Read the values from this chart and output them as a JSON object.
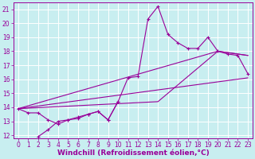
{
  "background_color": "#c8eef0",
  "grid_color": "#ffffff",
  "line_color": "#990099",
  "xlim": [
    -0.5,
    23.5
  ],
  "ylim": [
    11.8,
    21.5
  ],
  "xtick_vals": [
    0,
    1,
    2,
    3,
    4,
    5,
    6,
    7,
    8,
    9,
    10,
    11,
    12,
    13,
    14,
    15,
    16,
    17,
    18,
    19,
    20,
    21,
    22,
    23
  ],
  "ytick_vals": [
    12,
    13,
    14,
    15,
    16,
    17,
    18,
    19,
    20,
    21
  ],
  "xlabel": "Windchill (Refroidissement éolien,°C)",
  "xlabel_fontsize": 6.5,
  "tick_fontsize": 5.5,
  "curve1_x": [
    0,
    1,
    2,
    3,
    4,
    5,
    6,
    7,
    8,
    9,
    10
  ],
  "curve1_y": [
    13.9,
    13.6,
    13.6,
    13.1,
    12.8,
    13.1,
    13.3,
    13.5,
    13.7,
    13.1,
    14.4
  ],
  "curve2_x": [
    2,
    3,
    4,
    5,
    6,
    7,
    8,
    9,
    10,
    11,
    12,
    13,
    14,
    15,
    16,
    17,
    18,
    19,
    20,
    21,
    22,
    23
  ],
  "curve2_y": [
    11.9,
    12.4,
    13.0,
    13.1,
    13.2,
    13.5,
    13.7,
    13.1,
    14.4,
    16.1,
    16.2,
    20.3,
    21.2,
    19.2,
    18.6,
    18.2,
    18.2,
    19.0,
    18.0,
    17.8,
    17.7,
    16.4
  ],
  "line1_x": [
    0,
    23
  ],
  "line1_y": [
    13.9,
    16.1
  ],
  "line2_x": [
    0,
    20,
    23
  ],
  "line2_y": [
    13.9,
    18.0,
    17.7
  ],
  "line3_x": [
    0,
    14,
    20,
    23
  ],
  "line3_y": [
    13.9,
    14.4,
    18.0,
    17.7
  ]
}
